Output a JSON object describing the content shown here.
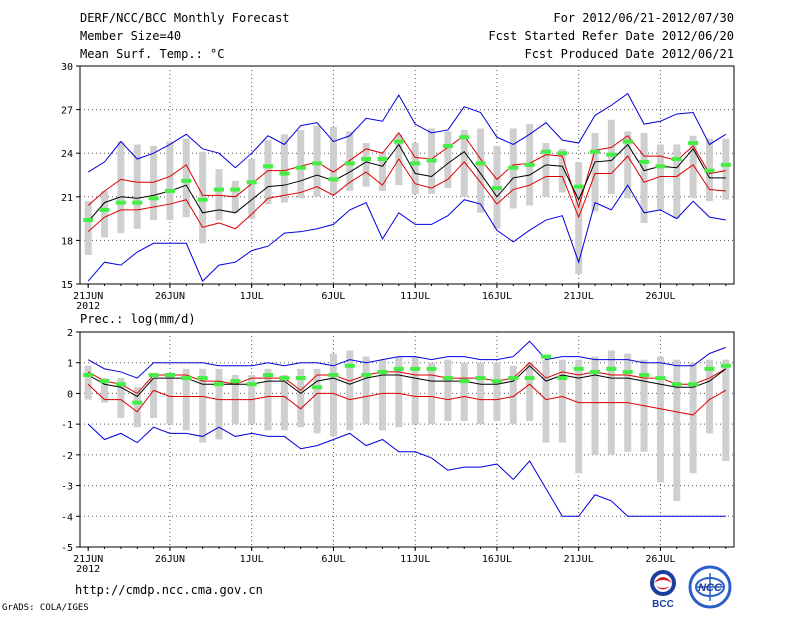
{
  "header": {
    "title": "DERF/NCC/BCC Monthly Forecast",
    "member_size": "Member Size=40",
    "variable": "Mean Surf. Temp.: °C",
    "period": "For 2012/06/21-2012/07/30",
    "start_date": "Fcst Started Refer Date 2012/06/20",
    "produced_date": "Fcst Produced Date 2012/06/21"
  },
  "footer": {
    "url": "http://cmdp.ncc.cma.gov.cn",
    "grads_credit": "GrADS: COLA/IGES",
    "logo_bcc": "BCC",
    "logo_ncc": "NCC"
  },
  "colors": {
    "range_lines": "#0000dd",
    "quartile_lines": "#dd0000",
    "median_line": "#000000",
    "bars": "#cfcfcf",
    "observation_marks": "#44ee44"
  },
  "chart_data": [
    {
      "type": "box-line",
      "title": "Mean Surf. Temp.: °C",
      "xlabel": "",
      "ylabel": "",
      "ylim": [
        15,
        30
      ],
      "yticks": [
        "15",
        "18",
        "21",
        "24",
        "27",
        "30"
      ],
      "xtick_labels": [
        "21JUN",
        "26JUN",
        "1JUL",
        "6JUL",
        "11JUL",
        "16JUL",
        "21JUL",
        "26JUL"
      ],
      "xtick_year": "2012",
      "days": 40,
      "grid": true,
      "series": [
        {
          "name": "max",
          "values": [
            22.7,
            23.4,
            24.8,
            23.6,
            24.0,
            24.6,
            25.3,
            24.3,
            24.0,
            23.0,
            24.0,
            25.2,
            24.6,
            25.9,
            26.1,
            24.8,
            25.2,
            26.4,
            26.2,
            28.0,
            26.0,
            25.4,
            25.6,
            27.2,
            26.8,
            25.1,
            24.6,
            25.3,
            26.1,
            24.9,
            24.7,
            26.6,
            27.3,
            28.1,
            26.0,
            26.2,
            26.7,
            26.8,
            24.6,
            25.3
          ]
        },
        {
          "name": "q3",
          "values": [
            20.4,
            21.4,
            22.2,
            22.0,
            22.0,
            22.4,
            23.2,
            21.1,
            21.1,
            21.0,
            21.9,
            22.8,
            22.8,
            23.1,
            23.4,
            22.7,
            23.5,
            24.3,
            24.0,
            25.4,
            23.7,
            23.6,
            24.4,
            25.2,
            23.6,
            22.2,
            23.2,
            23.3,
            23.9,
            23.8,
            20.3,
            24.2,
            24.4,
            25.2,
            23.8,
            23.8,
            23.5,
            24.5,
            22.6,
            22.8
          ]
        },
        {
          "name": "median",
          "values": [
            19.3,
            20.6,
            21.0,
            20.9,
            21.1,
            21.4,
            21.8,
            19.9,
            20.1,
            19.9,
            20.8,
            21.7,
            21.8,
            22.1,
            22.5,
            22.1,
            22.7,
            23.4,
            23.1,
            24.6,
            22.6,
            22.4,
            23.3,
            24.1,
            22.6,
            21.0,
            22.3,
            22.5,
            23.2,
            23.1,
            20.8,
            23.4,
            23.5,
            24.6,
            22.8,
            23.1,
            23.0,
            24.3,
            22.3,
            22.3
          ]
        },
        {
          "name": "q1",
          "values": [
            18.6,
            19.6,
            20.1,
            20.1,
            20.3,
            20.5,
            20.8,
            18.9,
            19.2,
            18.8,
            19.8,
            20.9,
            21.1,
            21.3,
            21.7,
            21.1,
            22.0,
            22.7,
            21.8,
            23.6,
            21.9,
            21.6,
            22.2,
            23.4,
            22.0,
            20.5,
            21.5,
            21.8,
            22.4,
            22.4,
            19.6,
            22.6,
            22.6,
            23.8,
            22.0,
            22.4,
            22.4,
            23.2,
            21.5,
            21.4
          ]
        },
        {
          "name": "min",
          "values": [
            15.2,
            16.5,
            16.3,
            17.2,
            17.8,
            17.8,
            17.8,
            15.2,
            16.3,
            16.5,
            17.3,
            17.6,
            18.5,
            18.6,
            18.8,
            19.1,
            20.1,
            20.6,
            18.1,
            19.9,
            19.1,
            19.1,
            19.7,
            20.8,
            20.5,
            18.7,
            17.9,
            18.7,
            19.4,
            19.7,
            16.5,
            20.6,
            20.1,
            21.8,
            19.9,
            20.1,
            19.5,
            20.7,
            19.6,
            19.4
          ]
        },
        {
          "name": "observed",
          "values": [
            19.4,
            20.1,
            20.6,
            20.6,
            20.9,
            21.4,
            22.1,
            20.8,
            21.5,
            21.5,
            22.0,
            23.1,
            22.6,
            23.0,
            23.3,
            22.2,
            23.3,
            23.6,
            23.6,
            24.8,
            23.3,
            23.5,
            24.5,
            25.1,
            23.3,
            21.6,
            23.0,
            23.2,
            24.1,
            24.0,
            21.7,
            24.1,
            23.9,
            24.8,
            23.4,
            23.1,
            23.6,
            24.7,
            22.8,
            23.2
          ]
        },
        {
          "name": "bar_top",
          "values": [
            20.7,
            21.4,
            24.8,
            24.6,
            24.5,
            24.8,
            25.0,
            24.1,
            22.9,
            22.1,
            23.6,
            24.9,
            25.3,
            25.6,
            25.9,
            25.8,
            25.5,
            24.7,
            24.1,
            25.3,
            24.7,
            25.7,
            25.5,
            25.6,
            25.7,
            24.5,
            25.7,
            26.0,
            24.7,
            24.3,
            23.4,
            25.4,
            26.3,
            25.5,
            25.4,
            24.6,
            24.6,
            25.2,
            25.0,
            25.0
          ]
        },
        {
          "name": "bar_bottom",
          "values": [
            17.0,
            18.2,
            18.5,
            18.8,
            19.4,
            19.4,
            19.6,
            17.8,
            19.4,
            19.9,
            19.5,
            20.5,
            20.6,
            20.9,
            21.0,
            21.2,
            21.4,
            21.7,
            21.4,
            21.8,
            21.2,
            21.2,
            21.6,
            21.0,
            19.9,
            18.8,
            20.2,
            20.4,
            21.0,
            21.3,
            15.7,
            20.0,
            21.2,
            20.9,
            19.2,
            20.1,
            19.5,
            20.9,
            20.7,
            20.8
          ]
        }
      ]
    },
    {
      "type": "box-line",
      "title": "Prec.: log(mm/d)",
      "xlabel": "",
      "ylabel": "",
      "ylim": [
        -5,
        2
      ],
      "yticks": [
        "-5",
        "-4",
        "-3",
        "-2",
        "-1",
        "0",
        "1",
        "2"
      ],
      "xtick_labels": [
        "21JUN",
        "26JUN",
        "1JUL",
        "6JUL",
        "11JUL",
        "16JUL",
        "21JUL",
        "26JUL"
      ],
      "xtick_year": "2012",
      "days": 40,
      "grid": true,
      "series": [
        {
          "name": "max",
          "values": [
            1.1,
            0.8,
            0.7,
            0.5,
            1.0,
            1.0,
            1.0,
            1.0,
            0.9,
            0.9,
            0.9,
            1.0,
            0.9,
            1.0,
            1.0,
            0.9,
            1.1,
            1.0,
            1.1,
            1.2,
            1.2,
            1.1,
            1.2,
            1.2,
            1.1,
            1.1,
            1.2,
            1.7,
            1.1,
            1.2,
            1.2,
            1.1,
            1.1,
            1.1,
            1.0,
            1.0,
            0.9,
            0.9,
            1.3,
            1.5
          ]
        },
        {
          "name": "q3",
          "values": [
            0.7,
            0.4,
            0.3,
            0.0,
            0.6,
            0.6,
            0.6,
            0.4,
            0.4,
            0.3,
            0.5,
            0.5,
            0.5,
            0.1,
            0.6,
            0.6,
            0.4,
            0.6,
            0.7,
            0.7,
            0.6,
            0.6,
            0.5,
            0.5,
            0.5,
            0.4,
            0.5,
            1.0,
            0.5,
            0.7,
            0.6,
            0.7,
            0.6,
            0.6,
            0.5,
            0.5,
            0.3,
            0.3,
            0.5,
            0.8
          ]
        },
        {
          "name": "median",
          "values": [
            0.6,
            0.3,
            0.2,
            -0.1,
            0.5,
            0.5,
            0.5,
            0.3,
            0.3,
            0.3,
            0.3,
            0.4,
            0.4,
            0.0,
            0.4,
            0.5,
            0.3,
            0.5,
            0.6,
            0.6,
            0.5,
            0.4,
            0.4,
            0.4,
            0.3,
            0.3,
            0.4,
            0.9,
            0.4,
            0.6,
            0.5,
            0.6,
            0.5,
            0.5,
            0.4,
            0.3,
            0.2,
            0.2,
            0.4,
            0.8
          ]
        },
        {
          "name": "q1",
          "values": [
            0.3,
            -0.2,
            -0.2,
            -0.6,
            0.1,
            -0.1,
            -0.1,
            -0.1,
            -0.2,
            -0.2,
            -0.2,
            -0.1,
            -0.1,
            -0.5,
            0.0,
            0.0,
            -0.2,
            -0.1,
            0.0,
            0.0,
            -0.1,
            -0.1,
            -0.2,
            -0.1,
            -0.2,
            -0.2,
            -0.1,
            0.3,
            -0.2,
            -0.1,
            -0.3,
            -0.3,
            -0.3,
            -0.3,
            -0.4,
            -0.5,
            -0.6,
            -0.7,
            -0.2,
            0.1
          ]
        },
        {
          "name": "min",
          "values": [
            -1.0,
            -1.5,
            -1.3,
            -1.6,
            -1.1,
            -1.3,
            -1.3,
            -1.4,
            -1.1,
            -1.4,
            -1.3,
            -1.4,
            -1.4,
            -1.8,
            -1.7,
            -1.5,
            -1.3,
            -1.7,
            -1.5,
            -1.9,
            -1.9,
            -2.1,
            -2.5,
            -2.4,
            -2.4,
            -2.3,
            -2.8,
            -2.2,
            -3.1,
            -4.0,
            -4.0,
            -3.3,
            -3.5,
            -4.0,
            -4.0,
            -4.0,
            -4.0,
            -4.0,
            -4.0,
            -4.0
          ]
        },
        {
          "name": "observed",
          "values": [
            0.6,
            0.4,
            0.3,
            -0.3,
            0.6,
            0.6,
            0.5,
            0.5,
            0.3,
            0.4,
            0.3,
            0.6,
            0.5,
            0.5,
            0.2,
            0.6,
            0.9,
            0.6,
            0.7,
            0.8,
            0.8,
            0.8,
            0.5,
            0.4,
            0.5,
            0.4,
            0.5,
            0.5,
            1.2,
            0.5,
            0.8,
            0.7,
            0.8,
            0.7,
            0.6,
            0.5,
            0.3,
            0.3,
            0.8,
            0.9
          ]
        },
        {
          "name": "bar_top",
          "values": [
            0.9,
            0.5,
            0.5,
            0.2,
            0.5,
            0.6,
            0.8,
            0.8,
            0.8,
            0.6,
            0.6,
            0.8,
            0.6,
            0.8,
            0.8,
            1.3,
            1.4,
            1.2,
            1.1,
            1.2,
            1.2,
            1.0,
            1.1,
            1.0,
            1.0,
            1.0,
            0.9,
            1.0,
            1.1,
            1.1,
            1.1,
            1.2,
            1.4,
            1.3,
            1.1,
            1.2,
            1.1,
            1.0,
            1.1,
            1.1
          ]
        },
        {
          "name": "bar_bottom",
          "values": [
            -0.2,
            -0.3,
            -0.8,
            -1.1,
            -0.8,
            -1.0,
            -1.2,
            -1.6,
            -1.5,
            -1.0,
            -1.0,
            -1.2,
            -1.2,
            -1.1,
            -1.3,
            -1.4,
            -1.2,
            -1.0,
            -1.2,
            -1.1,
            -1.0,
            -1.0,
            -0.9,
            -0.9,
            -1.0,
            -0.9,
            -1.0,
            -0.9,
            -1.6,
            -1.6,
            -2.6,
            -2.0,
            -2.0,
            -1.9,
            -1.9,
            -2.9,
            -3.5,
            -2.6,
            -1.3,
            -2.2
          ]
        }
      ]
    }
  ]
}
